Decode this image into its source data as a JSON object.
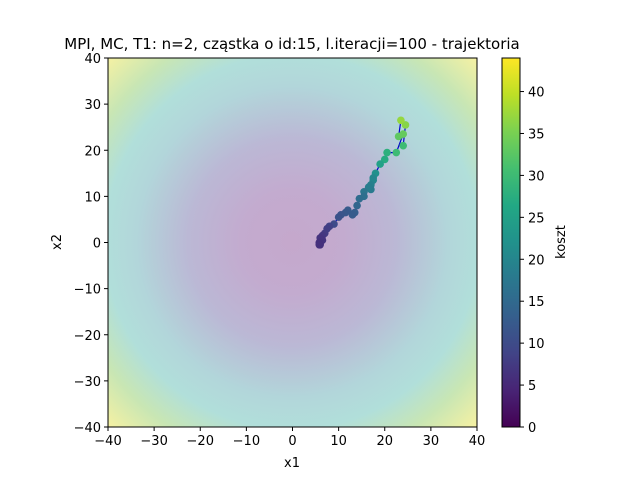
{
  "chart_data": {
    "type": "scatter",
    "title": "MPI, MC, T1: n=2, cząstka o id:15, l.iteracji=100 - trajektoria",
    "xlabel": "x1",
    "ylabel": "x2",
    "xlim": [
      -40,
      40
    ],
    "ylim": [
      -40,
      40
    ],
    "xticks": [
      -40,
      -30,
      -20,
      -10,
      0,
      10,
      20,
      30,
      40
    ],
    "yticks": [
      -40,
      -30,
      -20,
      -10,
      0,
      10,
      20,
      30,
      40
    ],
    "x_tick_labels": [
      "−40",
      "−30",
      "−20",
      "−10",
      "0",
      "10",
      "20",
      "30",
      "40"
    ],
    "y_tick_labels": [
      "−40",
      "−30",
      "−20",
      "−10",
      "0",
      "10",
      "20",
      "30",
      "40"
    ],
    "grid": false,
    "background": "contour of cost function (sphere), min at (0,0)",
    "colorbar": {
      "label": "koszt",
      "range": [
        0,
        44
      ],
      "ticks": [
        0,
        5,
        10,
        15,
        20,
        25,
        30,
        35,
        40
      ],
      "tick_labels": [
        "0",
        "5",
        "10",
        "15",
        "20",
        "25",
        "30",
        "35",
        "40"
      ],
      "colormap": "viridis"
    },
    "line_color": "#0000cc",
    "series": [
      {
        "x": [
          24,
          24.5,
          23.5,
          23,
          24,
          22.5,
          20.5,
          20,
          19,
          18,
          17.5,
          17.5,
          17,
          17,
          16.5,
          15.5,
          15.5,
          14.5,
          14,
          13.5,
          13,
          12,
          11.5,
          10.5,
          10,
          9,
          8,
          7.5,
          7,
          6.5,
          6.5,
          6,
          6,
          6,
          5.8,
          5.8
        ],
        "y": [
          21,
          25.5,
          26.5,
          23,
          23.5,
          19.5,
          19.5,
          18,
          17,
          15,
          14,
          13.5,
          12.5,
          11.5,
          12,
          11,
          10,
          9.5,
          8,
          6.5,
          6,
          7,
          6.5,
          6,
          5.5,
          4,
          3.5,
          3,
          2,
          1.5,
          0.5,
          1,
          0,
          -0.5,
          0,
          -0.5
        ],
        "cost": [
          30,
          36,
          37,
          33,
          33.5,
          30,
          28,
          27,
          25,
          22,
          20.5,
          20,
          19,
          18,
          18.5,
          17,
          16,
          15.5,
          14.5,
          13,
          12.5,
          12.5,
          12,
          11.5,
          11,
          10,
          8.5,
          8,
          7.5,
          7,
          6.5,
          6.5,
          6.5,
          6,
          6,
          6
        ]
      }
    ]
  }
}
